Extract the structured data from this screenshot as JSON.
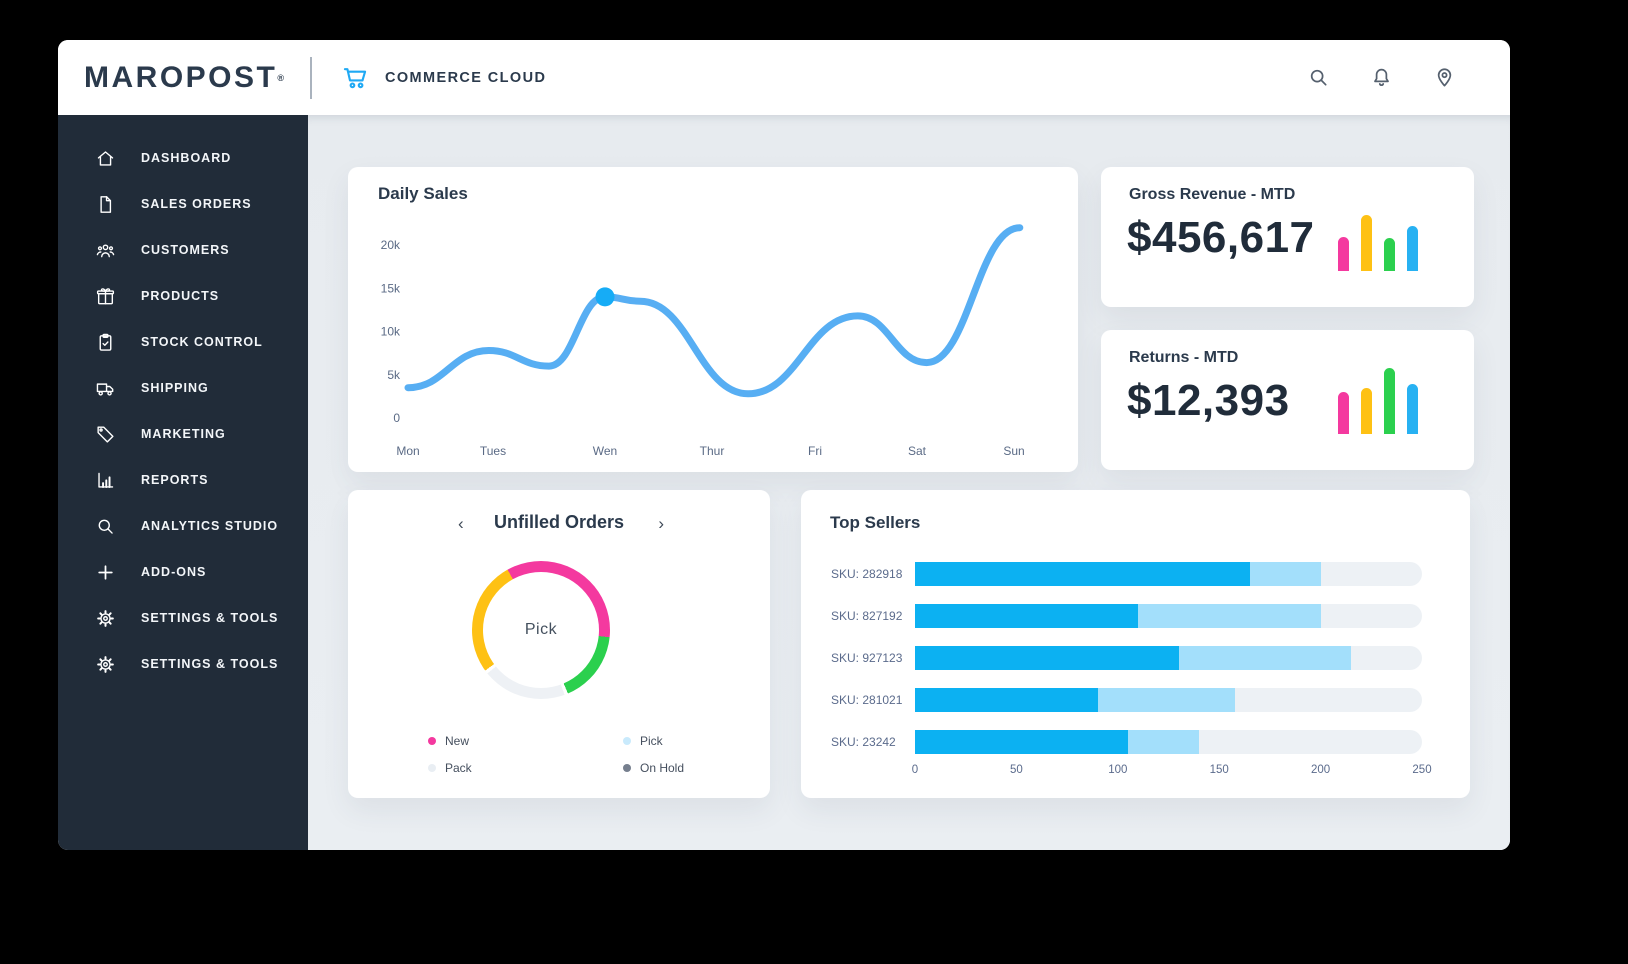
{
  "header": {
    "brand": "MAROPOST",
    "brand_mark": "®",
    "product": "COMMERCE CLOUD",
    "accent_color": "#1fa9f4",
    "icon_color": "#55606e",
    "icons": [
      "shopping-cart",
      "search",
      "bell",
      "location-pin"
    ]
  },
  "sidebar": {
    "bg": "#212c39",
    "items": [
      {
        "label": "DASHBOARD",
        "icon": "home"
      },
      {
        "label": "SALES ORDERS",
        "icon": "document"
      },
      {
        "label": "CUSTOMERS",
        "icon": "people"
      },
      {
        "label": "PRODUCTS",
        "icon": "gift"
      },
      {
        "label": "STOCK CONTROL",
        "icon": "clipboard-check"
      },
      {
        "label": "SHIPPING",
        "icon": "truck"
      },
      {
        "label": "MARKETING",
        "icon": "tag"
      },
      {
        "label": "REPORTS",
        "icon": "bar-chart"
      },
      {
        "label": "ANALYTICS STUDIO",
        "icon": "search"
      },
      {
        "label": "ADD-ONS",
        "icon": "plus"
      },
      {
        "label": "SETTINGS & TOOLS",
        "icon": "gear"
      },
      {
        "label": "SETTINGS & TOOLS",
        "icon": "gear"
      }
    ]
  },
  "cards": {
    "daily_sales": {
      "title": "Daily Sales"
    },
    "gross_revenue": {
      "title": "Gross Revenue - MTD",
      "value": "$456,617"
    },
    "returns": {
      "title": "Returns - MTD",
      "value": "$12,393"
    },
    "unfilled_orders": {
      "title": "Unfilled Orders",
      "prev": "‹",
      "next": "›",
      "center_label": "Pick",
      "legend": [
        {
          "label": "New",
          "color": "#f4399f"
        },
        {
          "label": "Pick",
          "color": "#c9eafc"
        },
        {
          "label": "Pack",
          "color": "#e9eef3"
        },
        {
          "label": "On Hold",
          "color": "#767f8e"
        }
      ]
    },
    "top_sellers": {
      "title": "Top Sellers"
    }
  },
  "chart_data": [
    {
      "type": "line",
      "title": "Daily Sales",
      "categories": [
        "Mon",
        "Tues",
        "Wen",
        "Thur",
        "Fri",
        "Sat",
        "Sun"
      ],
      "y_ticks": [
        {
          "value": 20000,
          "label": "20k"
        },
        {
          "value": 15000,
          "label": "15k"
        },
        {
          "value": 10000,
          "label": "10k"
        },
        {
          "value": 5000,
          "label": "5k"
        },
        {
          "value": 0,
          "label": "0"
        }
      ],
      "ylim": [
        0,
        22500
      ],
      "points": [
        {
          "x": 0.0,
          "y": 3500
        },
        {
          "x": 0.95,
          "y": 7800
        },
        {
          "x": 1.5,
          "y": 6000
        },
        {
          "x": 2.0,
          "y": 14000
        },
        {
          "x": 2.33,
          "y": 13500
        },
        {
          "x": 3.35,
          "y": 2800
        },
        {
          "x": 4.42,
          "y": 11800
        },
        {
          "x": 5.1,
          "y": 6400
        },
        {
          "x": 6.06,
          "y": 22000
        }
      ],
      "highlight_point": {
        "x": 2.0,
        "y": 14000
      },
      "line_color": "#57aef3",
      "dot_color": "#16acf6",
      "label_color": "#5a6a85",
      "grid": false,
      "legend_position": "none"
    },
    {
      "type": "bar",
      "title": "Gross Revenue - MTD sparkline",
      "values": [
        34,
        56,
        33,
        45
      ],
      "colors": [
        "#f4399f",
        "#fec114",
        "#2bd04e",
        "#27b1f2"
      ]
    },
    {
      "type": "bar",
      "title": "Returns - MTD sparkline",
      "values": [
        42,
        46,
        66,
        50
      ],
      "colors": [
        "#f4399f",
        "#fec114",
        "#2bd04e",
        "#27b1f2"
      ]
    },
    {
      "type": "pie",
      "title": "Unfilled Orders",
      "start_deg": 331,
      "segments": [
        {
          "color": "#f4399f",
          "deg": 125
        },
        {
          "color": "#2bd04e",
          "deg": 61
        },
        {
          "color": "#eef1f5",
          "deg": 71,
          "gap_before": 3,
          "gap_after": 3
        },
        {
          "color": "#fec114",
          "deg": 97
        }
      ],
      "center_label": "Pick"
    },
    {
      "type": "bar",
      "orientation": "horizontal-stacked",
      "title": "Top Sellers",
      "categories": [
        "SKU: 282918",
        "SKU: 827192",
        "SKU: 927123",
        "SKU: 281021",
        "SKU: 23242"
      ],
      "series": [
        {
          "name": "primary",
          "color": "#0cb1f2",
          "values": [
            165,
            110,
            130,
            90,
            105
          ]
        },
        {
          "name": "secondary",
          "color": "#a3dffb",
          "values": [
            35,
            90,
            85,
            68,
            35
          ]
        }
      ],
      "x_ticks": [
        0,
        50,
        100,
        150,
        200,
        250
      ],
      "xlim": [
        0,
        250
      ],
      "track_color": "#edf1f5",
      "grid": false
    }
  ]
}
